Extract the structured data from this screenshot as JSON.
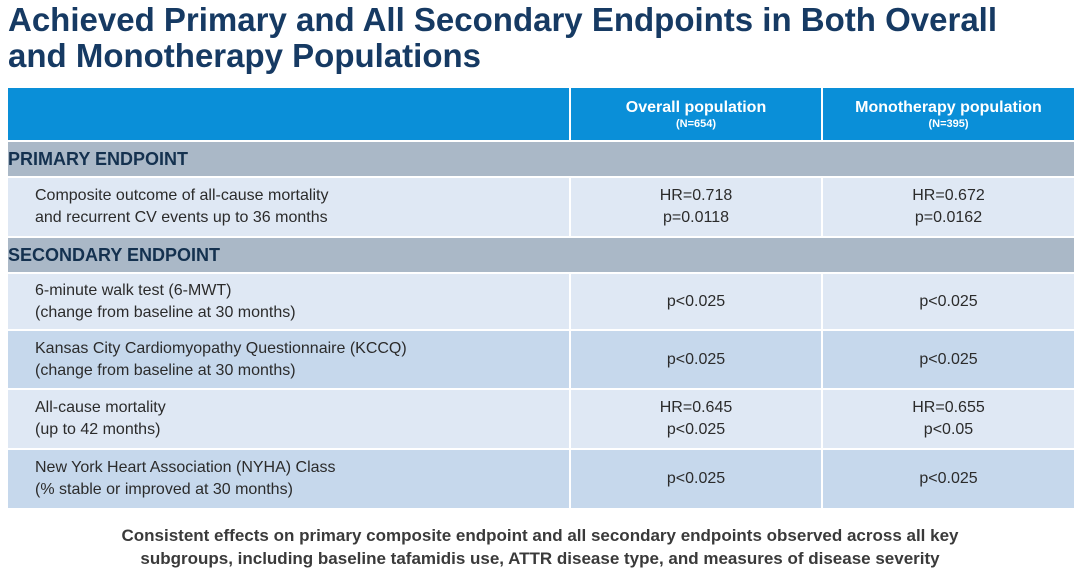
{
  "title": {
    "line1": "Achieved Primary and All Secondary Endpoints in Both Overall",
    "line2": "and Monotherapy Populations"
  },
  "table": {
    "header": {
      "overall": {
        "label": "Overall population",
        "n": "(N=654)"
      },
      "mono": {
        "label": "Monotherapy population",
        "n": "(N=395)"
      }
    },
    "primary_section": "PRIMARY ENDPOINT",
    "primary_rows": [
      {
        "label": [
          "Composite outcome of all-cause mortality",
          "and recurrent CV events up to 36 months"
        ],
        "overall": [
          "HR=0.718",
          "p=0.0118"
        ],
        "mono": [
          "HR=0.672",
          "p=0.0162"
        ]
      }
    ],
    "secondary_section": "SECONDARY ENDPOINT",
    "secondary_rows": [
      {
        "label": [
          "6-minute walk test (6-MWT)",
          "(change from baseline at 30 months)"
        ],
        "overall": [
          "p<0.025"
        ],
        "mono": [
          "p<0.025"
        ]
      },
      {
        "label": [
          "Kansas City Cardiomyopathy Questionnaire (KCCQ)",
          "(change from baseline at 30 months)"
        ],
        "overall": [
          "p<0.025"
        ],
        "mono": [
          "p<0.025"
        ]
      },
      {
        "label": [
          "All-cause mortality",
          "(up to 42 months)"
        ],
        "overall": [
          "HR=0.645",
          "p<0.025"
        ],
        "mono": [
          "HR=0.655",
          "p<0.05"
        ]
      },
      {
        "label": [
          "New York Heart Association (NYHA) Class",
          "(% stable or improved at 30 months)"
        ],
        "overall": [
          "p<0.025"
        ],
        "mono": [
          "p<0.025"
        ]
      }
    ]
  },
  "footnote": {
    "line1": "Consistent effects on primary composite endpoint and all secondary endpoints observed across all key",
    "line2": "subgroups, including baseline tafamidis use, ATTR disease type, and measures of disease severity"
  },
  "colors": {
    "title": "#163a63",
    "header_bg": "#0a8fd8",
    "section_bg": "#aab8c7",
    "row_light": "#dfe8f4",
    "row_dark": "#c6d8ec"
  }
}
